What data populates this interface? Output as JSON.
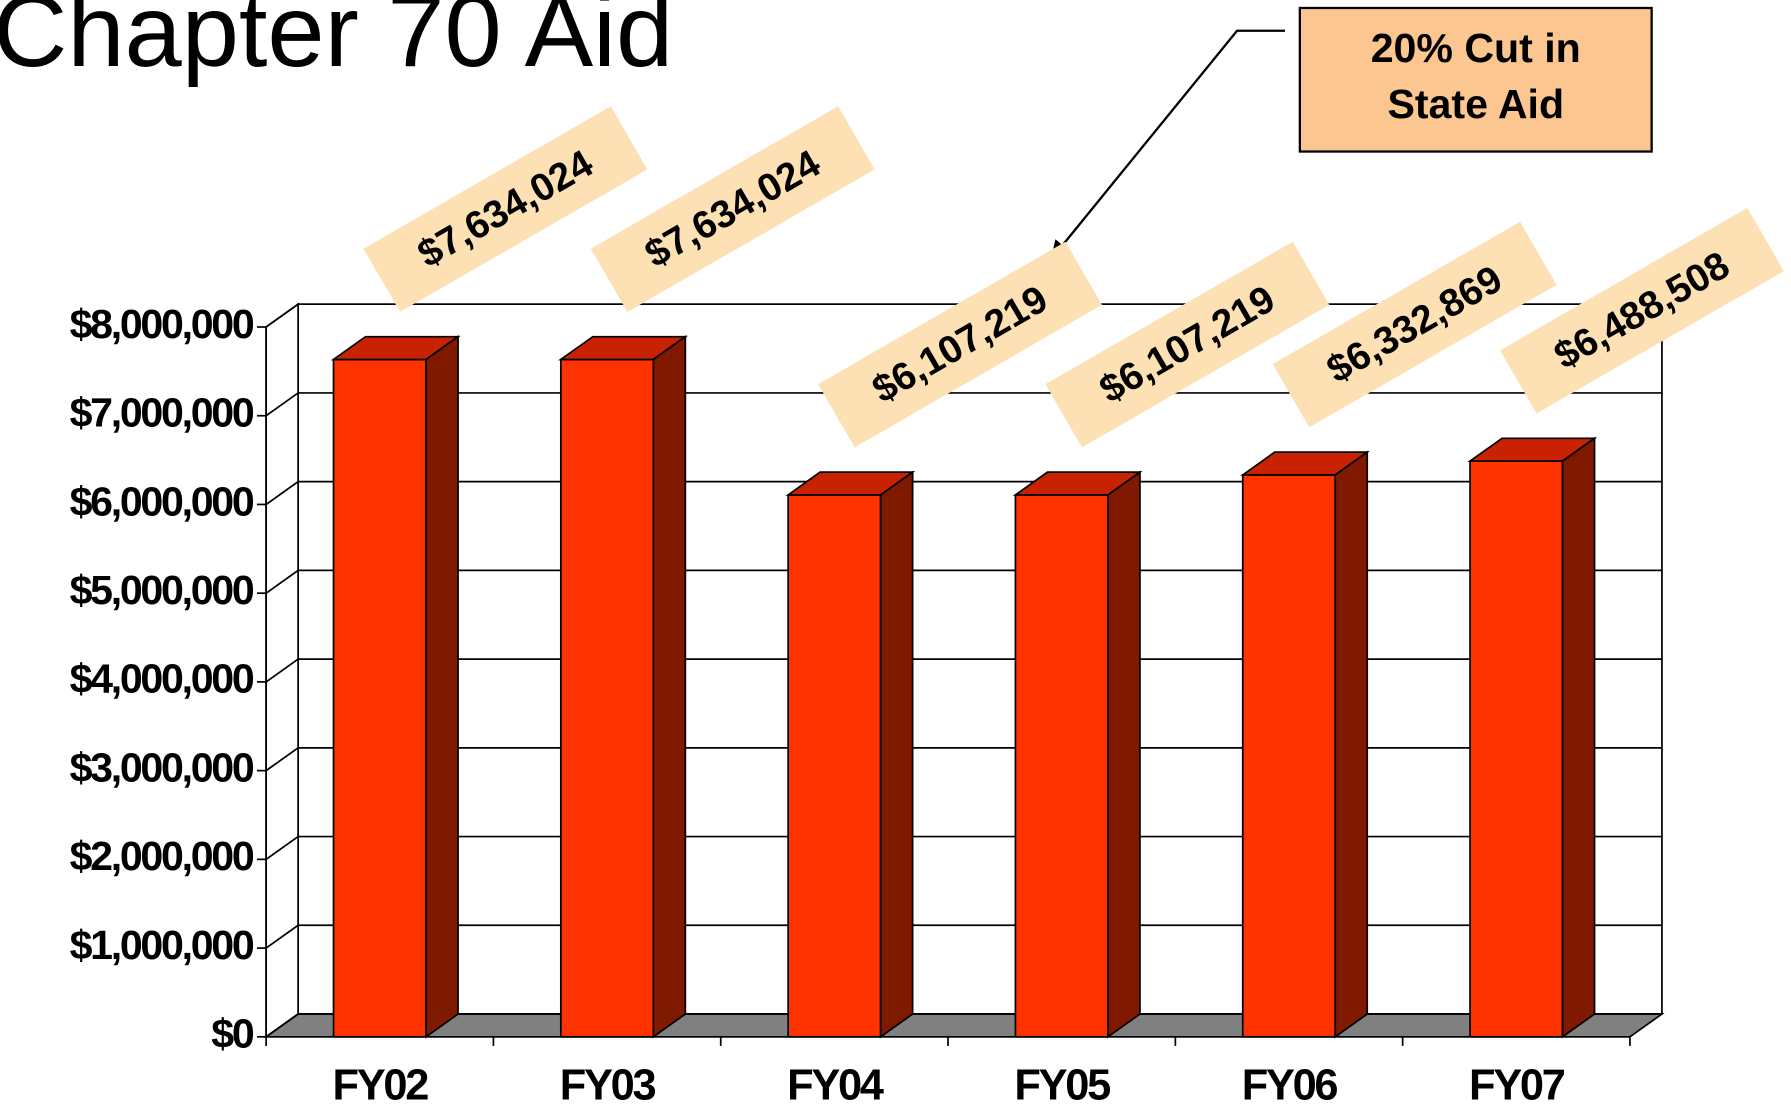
{
  "chart_data": {
    "type": "bar3d",
    "title": "Chapter 70 Aid",
    "categories": [
      "FY02",
      "FY03",
      "FY04",
      "FY05",
      "FY06",
      "FY07"
    ],
    "values": [
      7634024,
      7634024,
      6107219,
      6107219,
      6332869,
      6488508
    ],
    "value_labels": [
      "$7,634,024",
      "$7,634,024",
      "$6,107,219",
      "$6,107,219",
      "$6,332,869",
      "$6,488,508"
    ],
    "color": "#ff3300",
    "ylim": [
      0,
      8000000
    ],
    "yticks": [
      {
        "value": 0,
        "label": "$0"
      },
      {
        "value": 1000000,
        "label": "$1,000,000"
      },
      {
        "value": 2000000,
        "label": "$2,000,000"
      },
      {
        "value": 3000000,
        "label": "$3,000,000"
      },
      {
        "value": 4000000,
        "label": "$4,000,000"
      },
      {
        "value": 5000000,
        "label": "$5,000,000"
      },
      {
        "value": 6000000,
        "label": "$6,000,000"
      },
      {
        "value": 7000000,
        "label": "$7,000,000"
      },
      {
        "value": 8000000,
        "label": "$8,000,000"
      }
    ],
    "grid": true,
    "annotation": [
      "20% Cut in",
      "State Aid"
    ]
  }
}
